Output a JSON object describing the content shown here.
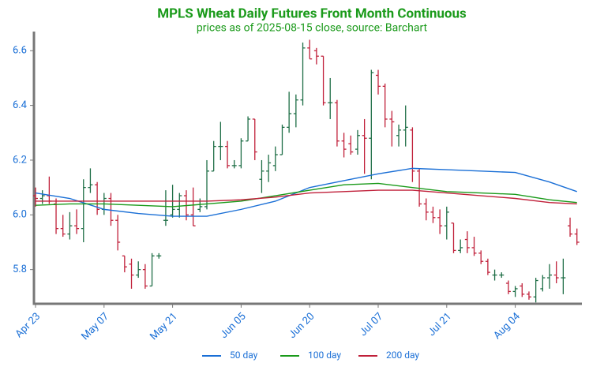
{
  "chart_data": {
    "type": "ohlc",
    "title": "MPLS Wheat Daily Futures Front Month Continuous",
    "subtitle": "prices as of 2025-08-15 close, source: Barchart",
    "categories": [
      "Apr 23",
      null,
      null,
      null,
      null,
      null,
      null,
      null,
      null,
      null,
      "May 07",
      null,
      null,
      null,
      null,
      null,
      null,
      null,
      null,
      null,
      "May 21",
      null,
      null,
      null,
      null,
      null,
      null,
      null,
      null,
      null,
      "Jun 05",
      null,
      null,
      null,
      null,
      null,
      null,
      null,
      null,
      null,
      "Jun 20",
      null,
      null,
      null,
      null,
      null,
      null,
      null,
      null,
      null,
      "Jul 07",
      null,
      null,
      null,
      null,
      null,
      null,
      null,
      null,
      null,
      "Jul 21",
      null,
      null,
      null,
      null,
      null,
      null,
      null,
      null,
      null,
      "Aug 04",
      null,
      null,
      null,
      null,
      null,
      null,
      null,
      null,
      null
    ],
    "open": [
      6.07,
      6.06,
      6.07,
      6.04,
      5.95,
      5.93,
      5.96,
      5.95,
      6.1,
      6.11,
      6.02,
      6.06,
      5.98,
      5.85,
      5.82,
      5.78,
      5.8,
      5.74,
      5.85,
      5.98,
      6.0,
      6.02,
      6.07,
      6.0,
      6.02,
      6.03,
      6.16,
      6.25,
      6.25,
      6.18,
      6.18,
      6.27,
      6.35,
      6.13,
      6.16,
      6.18,
      6.22,
      6.32,
      6.37,
      6.42,
      6.61,
      6.6,
      6.58,
      6.41,
      6.41,
      6.27,
      6.26,
      6.24,
      6.29,
      6.28,
      6.51,
      6.47,
      6.35,
      6.29,
      6.31,
      6.31,
      6.16,
      6.04,
      6.01,
      5.99,
      5.96,
      5.97,
      5.87,
      5.91,
      5.88,
      5.86,
      5.83,
      5.78,
      5.78,
      5.75,
      5.72,
      5.74,
      5.71,
      5.7,
      5.73,
      5.77,
      5.78,
      5.77,
      5.96,
      5.93
    ],
    "high": [
      6.1,
      6.09,
      6.14,
      6.06,
      6.0,
      6.01,
      6.02,
      6.13,
      6.17,
      6.12,
      6.08,
      6.08,
      6.0,
      5.85,
      5.84,
      5.83,
      5.82,
      5.86,
      5.86,
      6.09,
      6.11,
      6.08,
      6.09,
      6.1,
      6.06,
      6.2,
      6.27,
      6.34,
      6.27,
      6.2,
      6.28,
      6.36,
      6.35,
      6.2,
      6.22,
      6.25,
      6.33,
      6.45,
      6.44,
      6.63,
      6.64,
      6.61,
      6.58,
      6.5,
      6.42,
      6.3,
      6.29,
      6.31,
      6.35,
      6.53,
      6.53,
      6.48,
      6.38,
      6.33,
      6.4,
      6.32,
      6.17,
      6.06,
      6.03,
      6.02,
      6.03,
      5.97,
      5.91,
      5.94,
      5.92,
      5.87,
      5.84,
      5.8,
      5.79,
      5.76,
      5.74,
      5.75,
      5.72,
      5.77,
      5.78,
      5.82,
      5.83,
      5.84,
      5.99,
      5.95
    ],
    "low": [
      6.03,
      6.04,
      6.04,
      5.93,
      5.92,
      5.91,
      5.93,
      5.9,
      6.08,
      6.0,
      6.0,
      5.96,
      5.87,
      5.79,
      5.73,
      5.77,
      5.73,
      5.74,
      5.84,
      5.96,
      5.99,
      5.99,
      5.98,
      5.96,
      6.01,
      6.02,
      6.16,
      6.2,
      6.17,
      6.17,
      6.17,
      6.27,
      6.2,
      6.08,
      6.12,
      6.16,
      6.22,
      6.3,
      6.32,
      6.4,
      6.57,
      6.55,
      6.4,
      6.35,
      6.25,
      6.21,
      6.22,
      6.22,
      6.15,
      6.13,
      6.44,
      6.32,
      6.25,
      6.25,
      6.25,
      6.12,
      6.03,
      5.98,
      5.97,
      5.93,
      5.91,
      5.86,
      5.86,
      5.86,
      5.85,
      5.82,
      5.78,
      5.76,
      5.77,
      5.71,
      5.7,
      5.7,
      5.69,
      5.68,
      5.72,
      5.73,
      5.75,
      5.71,
      5.92,
      5.89
    ],
    "close": [
      6.06,
      6.07,
      6.05,
      5.95,
      5.93,
      5.96,
      5.95,
      6.1,
      6.11,
      6.02,
      6.06,
      5.98,
      5.9,
      5.81,
      5.78,
      5.8,
      5.74,
      5.85,
      5.85,
      5.98,
      6.02,
      6.07,
      6.0,
      5.96,
      6.03,
      6.16,
      6.25,
      6.25,
      6.18,
      6.18,
      6.27,
      6.35,
      6.23,
      6.16,
      6.19,
      6.22,
      6.32,
      6.37,
      6.42,
      6.61,
      6.57,
      6.58,
      6.41,
      6.41,
      6.27,
      6.24,
      6.23,
      6.29,
      6.28,
      6.52,
      6.47,
      6.35,
      6.34,
      6.31,
      6.32,
      6.16,
      6.04,
      6.01,
      5.99,
      5.96,
      6.01,
      5.87,
      5.88,
      5.88,
      5.86,
      5.83,
      5.79,
      5.78,
      5.78,
      5.72,
      5.73,
      5.71,
      5.7,
      5.76,
      5.77,
      5.78,
      5.77,
      5.77,
      5.93,
      5.9
    ],
    "up_color": "#1e6e46",
    "down_color": "#c0203a",
    "moving_averages": [
      {
        "name": "50 day",
        "color": "#1a6fd6",
        "x": [
          0,
          5,
          10,
          15,
          20,
          25,
          30,
          35,
          40,
          45,
          50,
          55,
          60,
          65,
          70,
          75,
          79
        ],
        "values": [
          6.08,
          6.06,
          6.02,
          6.005,
          5.995,
          5.995,
          6.02,
          6.05,
          6.1,
          6.125,
          6.15,
          6.17,
          6.165,
          6.16,
          6.155,
          6.12,
          6.085
        ]
      },
      {
        "name": "100 day",
        "color": "#1a9a1a",
        "x": [
          0,
          5,
          10,
          15,
          20,
          25,
          30,
          35,
          40,
          45,
          50,
          55,
          60,
          65,
          70,
          75,
          79
        ],
        "values": [
          6.035,
          6.04,
          6.04,
          6.035,
          6.03,
          6.04,
          6.05,
          6.07,
          6.09,
          6.11,
          6.115,
          6.1,
          6.085,
          6.08,
          6.075,
          6.055,
          6.045
        ]
      },
      {
        "name": "200 day",
        "color": "#c0203a",
        "x": [
          0,
          5,
          10,
          15,
          20,
          25,
          30,
          35,
          40,
          45,
          50,
          55,
          60,
          65,
          70,
          75,
          79
        ],
        "values": [
          6.05,
          6.05,
          6.05,
          6.05,
          6.05,
          6.05,
          6.055,
          6.065,
          6.08,
          6.085,
          6.09,
          6.09,
          6.08,
          6.07,
          6.06,
          6.045,
          6.04
        ]
      }
    ],
    "ylim": [
      5.675,
      6.67
    ],
    "yticks": [
      5.8,
      {
        "value": 6,
        "label": "6.0"
      },
      6.2,
      6.4,
      6.6
    ]
  }
}
